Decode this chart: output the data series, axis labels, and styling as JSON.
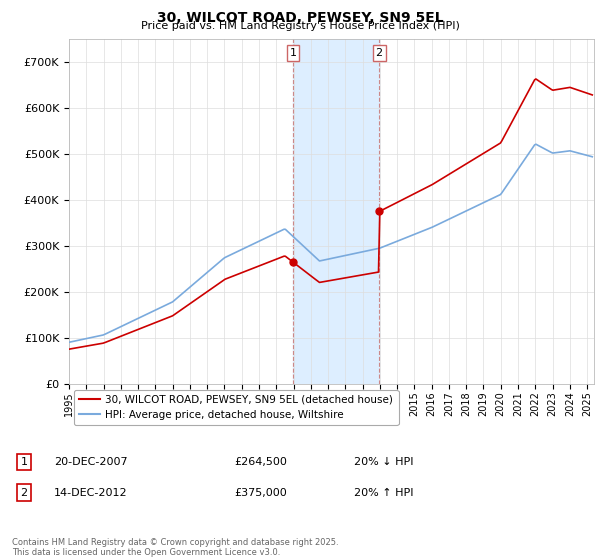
{
  "title": "30, WILCOT ROAD, PEWSEY, SN9 5EL",
  "subtitle": "Price paid vs. HM Land Registry's House Price Index (HPI)",
  "legend_line1": "30, WILCOT ROAD, PEWSEY, SN9 5EL (detached house)",
  "legend_line2": "HPI: Average price, detached house, Wiltshire",
  "annotation1_label": "1",
  "annotation1_date": "20-DEC-2007",
  "annotation1_price": "£264,500",
  "annotation1_hpi": "20% ↓ HPI",
  "annotation2_label": "2",
  "annotation2_date": "14-DEC-2012",
  "annotation2_price": "£375,000",
  "annotation2_hpi": "20% ↑ HPI",
  "copyright_text": "Contains HM Land Registry data © Crown copyright and database right 2025.\nThis data is licensed under the Open Government Licence v3.0.",
  "red_color": "#cc0000",
  "blue_color": "#7aaadd",
  "highlight_color": "#ddeeff",
  "ylim_min": 0,
  "ylim_max": 750000,
  "transaction1_year": 2007.97,
  "transaction2_year": 2012.96,
  "transaction1_price": 264500,
  "transaction2_price": 375000
}
